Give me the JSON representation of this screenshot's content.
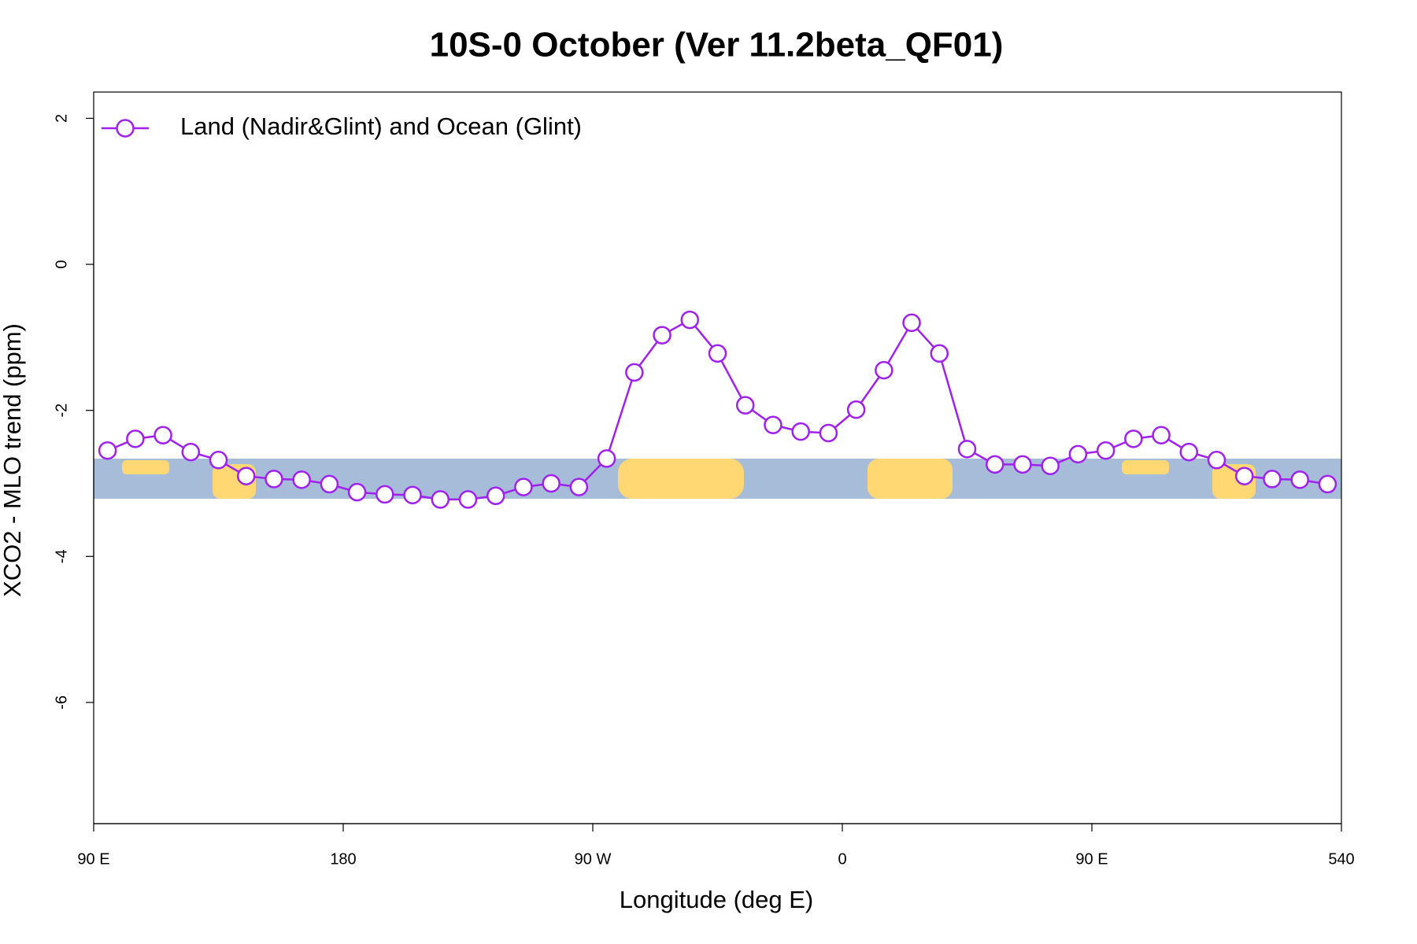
{
  "chart_data": {
    "type": "line",
    "title": "10S-0 October (Ver 11.2beta_QF01)",
    "x_label": "Longitude (deg E)",
    "y_label": "XCO2 - MLO trend (ppm)",
    "x": [
      95,
      105,
      115,
      125,
      135,
      145,
      155,
      165,
      175,
      185,
      195,
      205,
      215,
      225,
      235,
      245,
      255,
      265,
      275,
      285,
      295,
      305,
      315,
      325,
      335,
      345,
      355,
      365,
      375,
      385,
      395,
      405,
      415,
      425,
      435,
      445,
      455,
      465,
      475,
      485,
      495,
      505,
      515,
      525,
      535
    ],
    "series": [
      {
        "name": "Land (Nadir&Glint) and Ocean (Glint)",
        "color": "#a020f0",
        "values": [
          -2.55,
          -2.39,
          -2.34,
          -2.57,
          -2.68,
          -2.9,
          -2.94,
          -2.95,
          -3.01,
          -3.12,
          -3.15,
          -3.16,
          -3.22,
          -3.22,
          -3.17,
          -3.05,
          -3.0,
          -3.05,
          -2.66,
          -1.48,
          -0.97,
          -0.76,
          -1.22,
          -1.93,
          -2.2,
          -2.29,
          -2.31,
          -1.99,
          -1.45,
          -0.8,
          -1.22,
          -2.53,
          -2.74,
          -2.74,
          -2.76,
          -2.6,
          -2.55,
          -2.39,
          -2.34,
          -2.57,
          -2.68,
          -2.9,
          -2.94,
          -2.95,
          -3.01
        ]
      }
    ],
    "xlim": [
      90,
      540
    ],
    "ylim": [
      -7.66,
      2.36
    ],
    "xticks": [
      {
        "value": 90,
        "label": "90 E"
      },
      180,
      {
        "value": 270,
        "label": "90 W"
      },
      {
        "value": 360,
        "label": "0"
      },
      {
        "value": 450,
        "label": "90 E"
      },
      540
    ],
    "yticks": [
      2,
      0,
      -2,
      -4,
      -6
    ],
    "legend": "top-left"
  }
}
